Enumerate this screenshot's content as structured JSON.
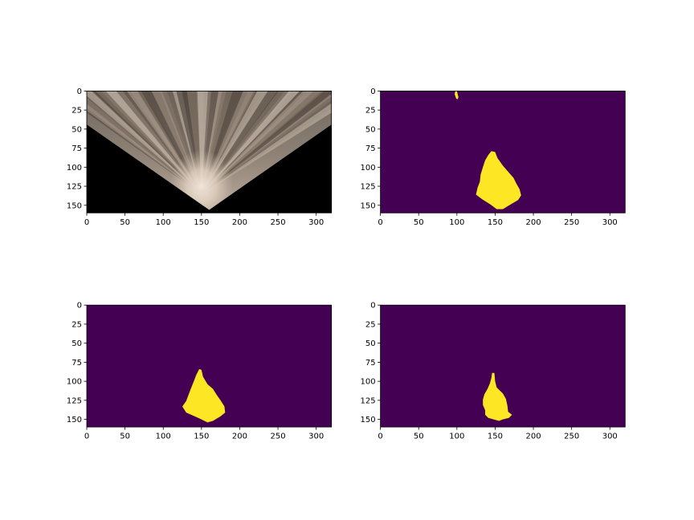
{
  "figure": {
    "background": "#ffffff",
    "layout": "2x2 grid of image panels",
    "colors": {
      "mask_background": "#440154",
      "mask_foreground": "#fde725",
      "terrain_light": "#eadbcd",
      "terrain_dark": "#5a4e44",
      "void": "#000000"
    }
  },
  "chart_data": [
    {
      "type": "heatmap",
      "content": "perspective-warped RGB terrain image",
      "xlim": [
        0,
        320
      ],
      "ylim": [
        160,
        0
      ],
      "xticks": [
        0,
        50,
        100,
        150,
        200,
        250,
        300
      ],
      "yticks": [
        0,
        25,
        50,
        75,
        100,
        125,
        150
      ],
      "xtick_labels": [
        "0",
        "50",
        "100",
        "150",
        "200",
        "250",
        "300"
      ],
      "ytick_labels": [
        "0",
        "25",
        "50",
        "75",
        "100",
        "125",
        "150"
      ],
      "image": {
        "visible_top_y": 0,
        "left_edge": [
          [
            0,
            44
          ],
          [
            160,
            156
          ]
        ],
        "right_edge": [
          [
            160,
            156
          ],
          [
            320,
            44
          ]
        ],
        "bright_center": [
          150,
          125
        ],
        "outside": "black"
      },
      "grid": false,
      "legend": "none"
    },
    {
      "type": "heatmap",
      "content": "binary mask (viridis colormap)",
      "xlim": [
        0,
        320
      ],
      "ylim": [
        160,
        0
      ],
      "xticks": [
        0,
        50,
        100,
        150,
        200,
        250,
        300
      ],
      "yticks": [
        0,
        25,
        50,
        75,
        100,
        125,
        150
      ],
      "xtick_labels": [
        "0",
        "50",
        "100",
        "150",
        "200",
        "250",
        "300"
      ],
      "ytick_labels": [
        "0",
        "25",
        "50",
        "75",
        "100",
        "125",
        "150"
      ],
      "regions": [
        {
          "name": "main-blob",
          "outline": [
            [
              145,
              79
            ],
            [
              150,
              80
            ],
            [
              153,
              88
            ],
            [
              160,
              98
            ],
            [
              167,
              106
            ],
            [
              174,
              114
            ],
            [
              178,
              122
            ],
            [
              182,
              129
            ],
            [
              184,
              137
            ],
            [
              180,
              143
            ],
            [
              170,
              149
            ],
            [
              160,
              155
            ],
            [
              152,
              155
            ],
            [
              144,
              149
            ],
            [
              133,
              142
            ],
            [
              125,
              136
            ],
            [
              127,
              127
            ],
            [
              130,
              119
            ],
            [
              131,
              110
            ],
            [
              134,
              100
            ],
            [
              137,
              91
            ],
            [
              141,
              84
            ]
          ]
        },
        {
          "name": "small-streak",
          "outline": [
            [
              98,
              0
            ],
            [
              100,
              0
            ],
            [
              102,
              8
            ],
            [
              101,
              11
            ],
            [
              99,
              10
            ],
            [
              97,
              4
            ]
          ]
        }
      ],
      "grid": false,
      "legend": "none"
    },
    {
      "type": "heatmap",
      "content": "binary mask (viridis colormap)",
      "xlim": [
        0,
        320
      ],
      "ylim": [
        160,
        0
      ],
      "xticks": [
        0,
        50,
        100,
        150,
        200,
        250,
        300
      ],
      "yticks": [
        0,
        25,
        50,
        75,
        100,
        125,
        150
      ],
      "xtick_labels": [
        "0",
        "50",
        "100",
        "150",
        "200",
        "250",
        "300"
      ],
      "ytick_labels": [
        "0",
        "25",
        "50",
        "75",
        "100",
        "125",
        "150"
      ],
      "regions": [
        {
          "name": "main-blob",
          "outline": [
            [
              147,
              84
            ],
            [
              150,
              85
            ],
            [
              152,
              94
            ],
            [
              158,
              104
            ],
            [
              165,
              110
            ],
            [
              170,
              118
            ],
            [
              175,
              125
            ],
            [
              180,
              133
            ],
            [
              181,
              141
            ],
            [
              175,
              146
            ],
            [
              165,
              152
            ],
            [
              158,
              154
            ],
            [
              150,
              150
            ],
            [
              141,
              146
            ],
            [
              130,
              141
            ],
            [
              125,
              133
            ],
            [
              130,
              126
            ],
            [
              133,
              118
            ],
            [
              136,
              110
            ],
            [
              140,
              100
            ],
            [
              143,
              92
            ]
          ]
        }
      ],
      "grid": false,
      "legend": "none"
    },
    {
      "type": "heatmap",
      "content": "binary mask (viridis colormap)",
      "xlim": [
        0,
        320
      ],
      "ylim": [
        160,
        0
      ],
      "xticks": [
        0,
        50,
        100,
        150,
        200,
        250,
        300
      ],
      "yticks": [
        0,
        25,
        50,
        75,
        100,
        125,
        150
      ],
      "xtick_labels": [
        "0",
        "50",
        "100",
        "150",
        "200",
        "250",
        "300"
      ],
      "ytick_labels": [
        "0",
        "25",
        "50",
        "75",
        "100",
        "125",
        "150"
      ],
      "regions": [
        {
          "name": "main-blob",
          "outline": [
            [
              146,
              89
            ],
            [
              149,
              89
            ],
            [
              150,
              100
            ],
            [
              152,
              108
            ],
            [
              156,
              112
            ],
            [
              160,
              116
            ],
            [
              164,
              123
            ],
            [
              166,
              132
            ],
            [
              167,
              140
            ],
            [
              172,
              144
            ],
            [
              168,
              148
            ],
            [
              160,
              150
            ],
            [
              155,
              152
            ],
            [
              148,
              150
            ],
            [
              141,
              148
            ],
            [
              137,
              144
            ],
            [
              137,
              138
            ],
            [
              134,
              131
            ],
            [
              134,
              124
            ],
            [
              136,
              117
            ],
            [
              140,
              110
            ],
            [
              143,
              103
            ],
            [
              145,
              96
            ]
          ]
        }
      ],
      "grid": false,
      "legend": "none"
    }
  ]
}
